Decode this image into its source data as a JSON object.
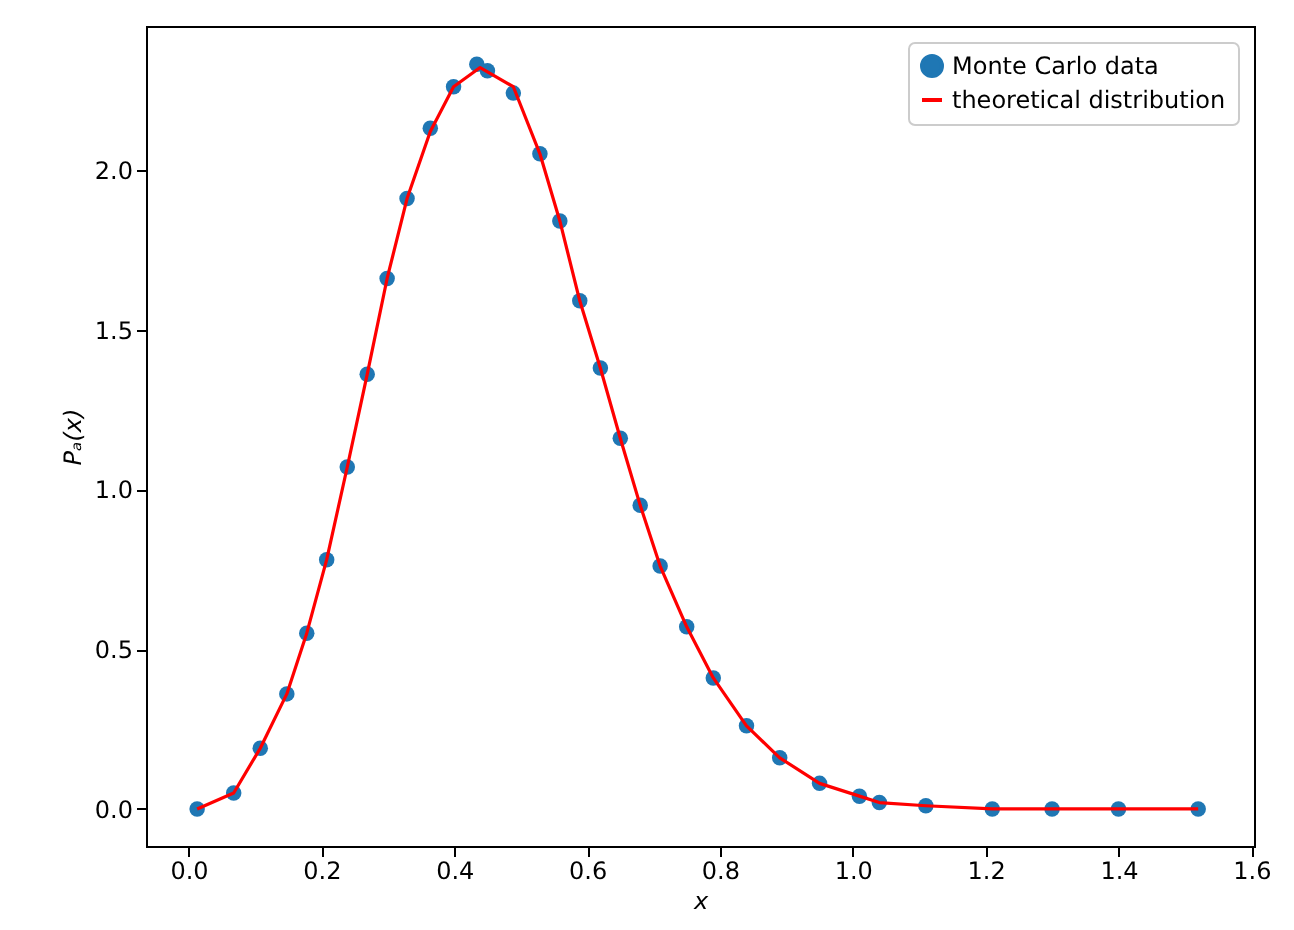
{
  "chart_data": {
    "type": "scatter",
    "xlabel": "x",
    "ylabel": "Pₐ(x)",
    "xlim": [
      -0.064,
      1.604
    ],
    "ylim": [
      -0.116,
      2.45
    ],
    "xticks": [
      {
        "value": 0,
        "label": "0.0"
      },
      0.2,
      0.4,
      0.6,
      0.8,
      {
        "value": 1,
        "label": "1.0"
      },
      1.2,
      1.4,
      1.6
    ],
    "yticks": [
      {
        "value": 0,
        "label": "0.0"
      },
      0.5,
      {
        "value": 1,
        "label": "1.0"
      },
      1.5,
      {
        "value": 2,
        "label": "2.0"
      }
    ],
    "grid": false,
    "legend": "top right",
    "series": [
      {
        "name": "Monte Carlo data",
        "marker": "circle",
        "color": "#1f77b4",
        "x": [
          0.013,
          0.068,
          0.108,
          0.148,
          0.178,
          0.208,
          0.239,
          0.269,
          0.299,
          0.329,
          0.364,
          0.399,
          0.434,
          0.45,
          0.489,
          0.529,
          0.559,
          0.589,
          0.62,
          0.65,
          0.68,
          0.71,
          0.75,
          0.79,
          0.84,
          0.89,
          0.95,
          1.01,
          1.04,
          1.11,
          1.21,
          1.3,
          1.4,
          1.52
        ],
        "values": [
          0,
          0.05,
          0.19,
          0.36,
          0.55,
          0.78,
          1.07,
          1.36,
          1.66,
          1.91,
          2.13,
          2.26,
          2.33,
          2.31,
          2.24,
          2.05,
          1.84,
          1.59,
          1.38,
          1.16,
          0.95,
          0.76,
          0.57,
          0.41,
          0.26,
          0.16,
          0.08,
          0.04,
          0.02,
          0.01,
          0,
          0,
          0,
          0
        ]
      },
      {
        "name": "theoretical distribution",
        "type": "line",
        "line_style": "solid",
        "color": "#ff0000",
        "x": [
          0.013,
          0.068,
          0.108,
          0.148,
          0.178,
          0.208,
          0.239,
          0.269,
          0.299,
          0.329,
          0.364,
          0.399,
          0.439,
          0.489,
          0.529,
          0.559,
          0.589,
          0.62,
          0.65,
          0.68,
          0.71,
          0.75,
          0.79,
          0.84,
          0.89,
          0.95,
          1.01,
          1.04,
          1.11,
          1.21,
          1.52
        ],
        "values": [
          0,
          0.05,
          0.19,
          0.36,
          0.55,
          0.78,
          1.07,
          1.36,
          1.66,
          1.91,
          2.12,
          2.26,
          2.32,
          2.26,
          2.05,
          1.84,
          1.59,
          1.38,
          1.16,
          0.95,
          0.76,
          0.57,
          0.41,
          0.26,
          0.16,
          0.08,
          0.04,
          0.02,
          0.01,
          0,
          0
        ]
      }
    ]
  }
}
